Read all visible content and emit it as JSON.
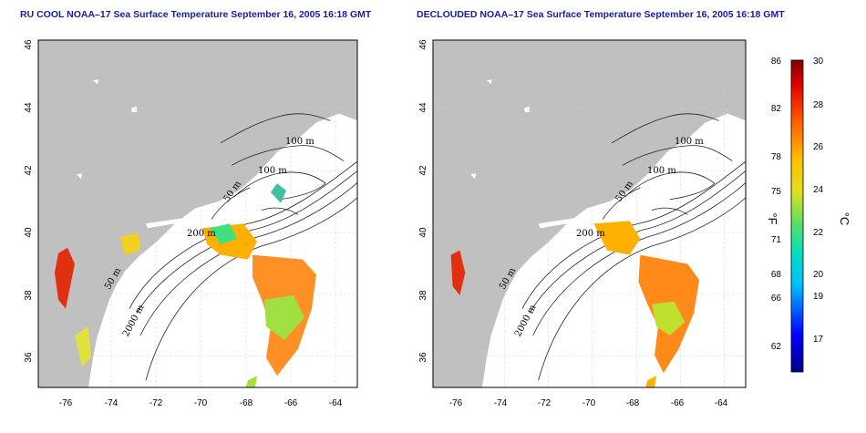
{
  "panels": [
    {
      "title": "RU COOL NOAA–17 Sea Surface Temperature September 16, 2005 16:18 GMT"
    },
    {
      "title": "DECLOUDED NOAA–17 Sea Surface Temperature September 16, 2005 16:18 GMT"
    }
  ],
  "map": {
    "lon_ticks": [
      "-76",
      "-74",
      "-72",
      "-70",
      "-68",
      "-66",
      "-64"
    ],
    "lat_ticks": [
      "36",
      "38",
      "40",
      "42",
      "44",
      "46"
    ],
    "contour_labels": [
      "100 m",
      "100 m",
      "50 m",
      "200 m",
      "50 m",
      "2000 m"
    ],
    "land_color": "#c0c0c0",
    "grid": true
  },
  "colorbar": {
    "fahrenheit_label": "°F",
    "celsius_label": "°C",
    "fahrenheit_ticks": [
      "86",
      "82",
      "78",
      "75",
      "71",
      "68",
      "66",
      "62"
    ],
    "celsius_ticks": [
      "30",
      "28",
      "26",
      "24",
      "22",
      "20",
      "19",
      "17"
    ]
  }
}
